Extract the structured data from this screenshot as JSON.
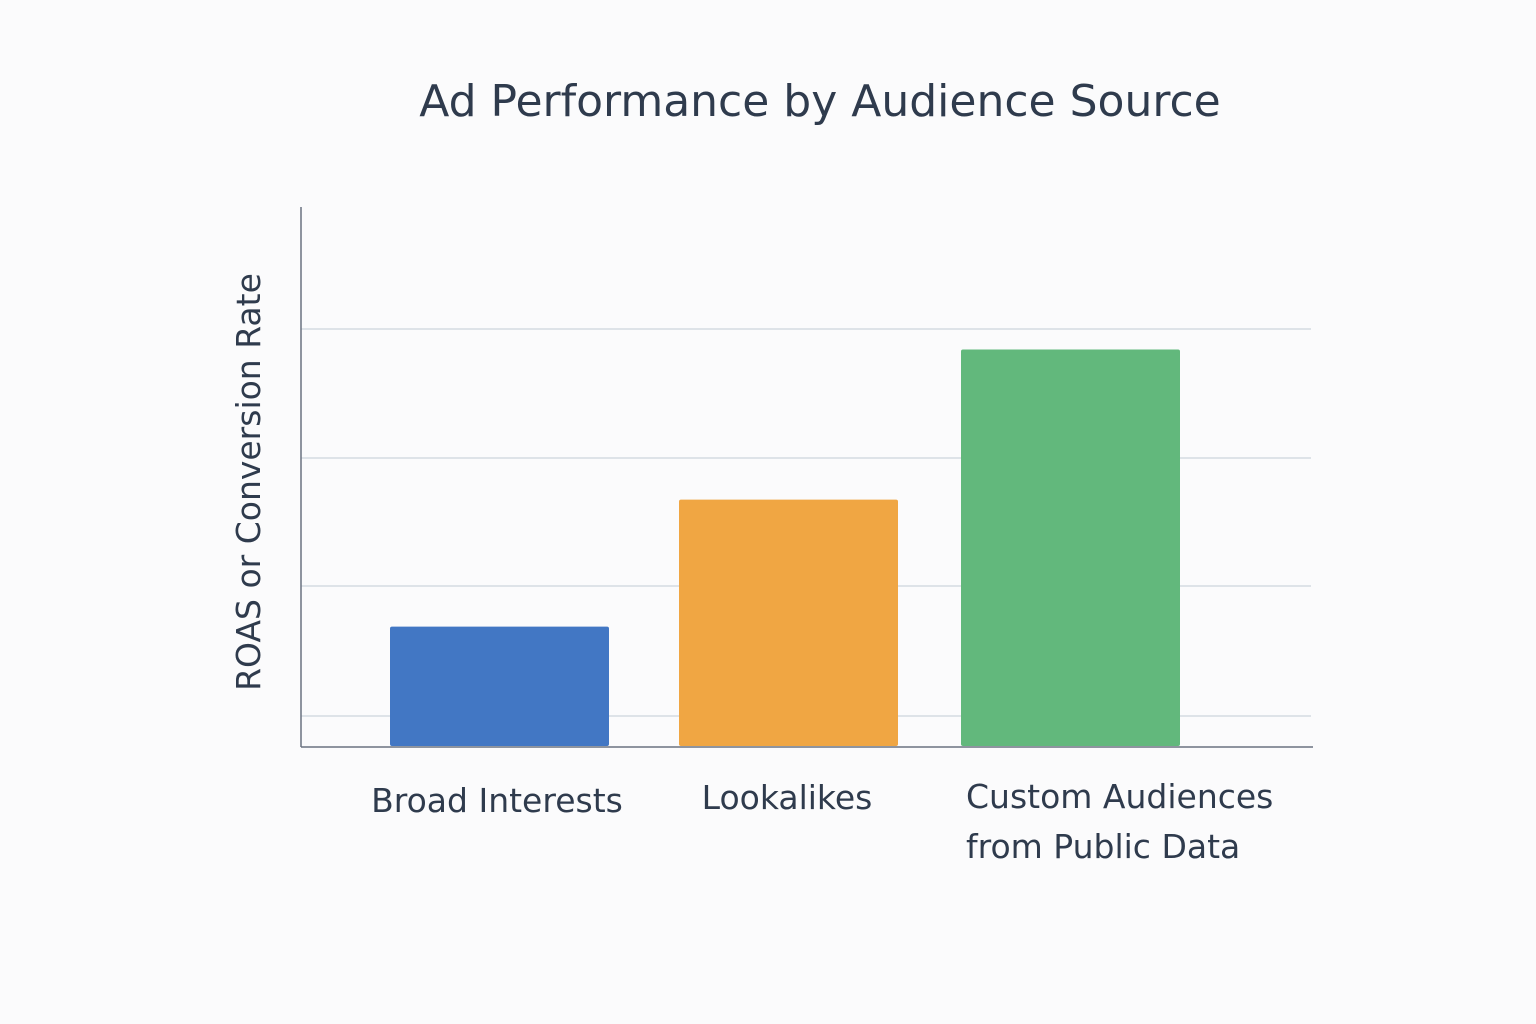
{
  "chart_data": {
    "type": "bar",
    "title": "Ad Performance by Audience Source",
    "xlabel": "",
    "ylabel": "ROAS or Conversion Rate",
    "categories": [
      "Broad Interests",
      "Lookalikes",
      "Custom Audiences from Public Data"
    ],
    "category_lines": [
      [
        "Broad Interests"
      ],
      [
        "Lookalikes"
      ],
      [
        "Custom Audiences",
        "from Public Data"
      ]
    ],
    "values": [
      0.93,
      1.92,
      3.09
    ],
    "ylim": [
      0,
      4.2
    ],
    "y_tick_labels": "none",
    "grid": true,
    "colors": [
      "#4277c4",
      "#f0a643",
      "#62b87c"
    ]
  }
}
